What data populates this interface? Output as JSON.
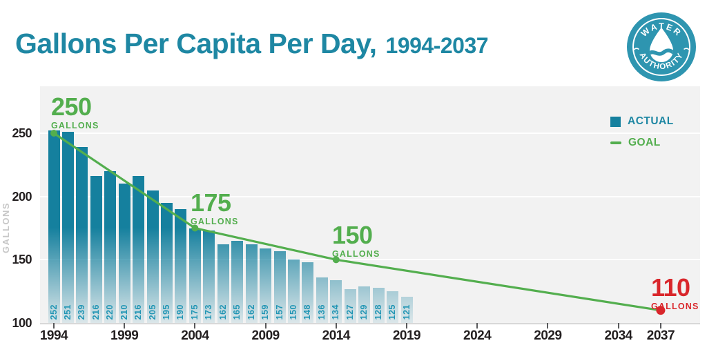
{
  "title": {
    "main": "Gallons Per Capita Per Day,",
    "range": "1994-2037"
  },
  "logo": {
    "top_text": "WATER",
    "bottom_text": "AUTHORITY"
  },
  "legend": [
    {
      "label": "ACTUAL",
      "swatch": "square"
    },
    {
      "label": "GOAL",
      "swatch": "line"
    }
  ],
  "colors": {
    "title_teal": "#1e87a3",
    "bar_teal_rgb": "21,128,158",
    "bar_teal": "#15809e",
    "bar_label_teal": "#2095b4",
    "green": "#53ae4e",
    "red": "#d9262b",
    "axis_text": "#231f20",
    "axis_muted": "#c7c7c7",
    "plot_bg": "#f2f2f2",
    "logo_teal": "#2e95b0"
  },
  "chart_data": {
    "type": "bar",
    "title": "Gallons Per Capita Per Day, 1994-2037",
    "xlabel": "",
    "ylabel": "GALLONS",
    "ylim": [
      100,
      260
    ],
    "yticks": [
      250,
      200,
      150,
      100
    ],
    "xticks": [
      1994,
      1999,
      2004,
      2009,
      2014,
      2019,
      2024,
      2029,
      2034,
      2037
    ],
    "grid": "horizontal",
    "legend_position": "top-right",
    "series": [
      {
        "name": "ACTUAL",
        "type": "bar",
        "years": [
          1994,
          1995,
          1996,
          1997,
          1998,
          1999,
          2000,
          2001,
          2002,
          2003,
          2004,
          2005,
          2006,
          2007,
          2008,
          2009,
          2010,
          2011,
          2012,
          2013,
          2014,
          2015,
          2016,
          2017,
          2018,
          2019
        ],
        "values": [
          252,
          251,
          239,
          216,
          220,
          210,
          216,
          205,
          195,
          190,
          175,
          173,
          162,
          165,
          162,
          159,
          157,
          150,
          148,
          136,
          134,
          127,
          129,
          128,
          125,
          121
        ]
      },
      {
        "name": "GOAL",
        "type": "line",
        "points": [
          {
            "year": 1994,
            "value": 250
          },
          {
            "year": 2004,
            "value": 175
          },
          {
            "year": 2014,
            "value": 150
          },
          {
            "year": 2037,
            "value": 110
          }
        ]
      }
    ],
    "annotations": [
      {
        "value": "250",
        "unit": "GALLONS",
        "year": 1994,
        "color": "green"
      },
      {
        "value": "175",
        "unit": "GALLONS",
        "year": 2004,
        "color": "green"
      },
      {
        "value": "150",
        "unit": "GALLONS",
        "year": 2014,
        "color": "green"
      },
      {
        "value": "110",
        "unit": "GALLONS",
        "year": 2037,
        "color": "red"
      }
    ]
  }
}
